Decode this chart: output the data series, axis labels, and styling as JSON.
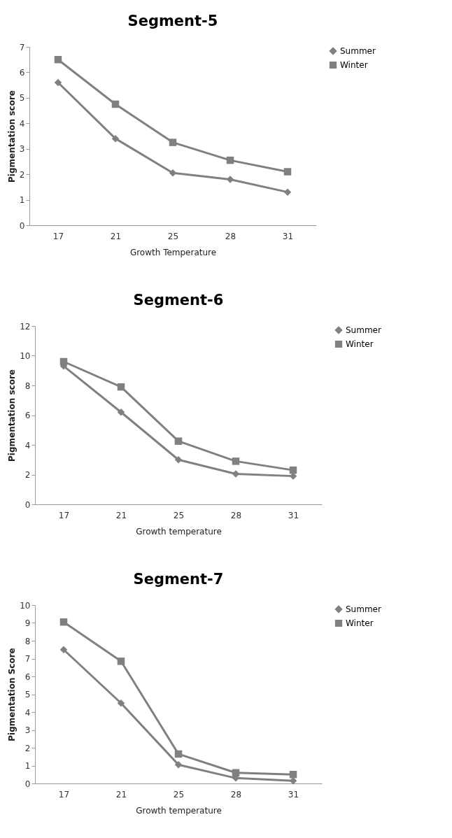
{
  "chart_data": [
    {
      "type": "line",
      "title": "Segment-5",
      "xlabel": "Growth Temperature",
      "ylabel": "Pigmentation score",
      "categories": [
        "17",
        "21",
        "25",
        "28",
        "31"
      ],
      "ylim": [
        0,
        7
      ],
      "yticks": [
        0,
        1,
        2,
        3,
        4,
        5,
        6,
        7
      ],
      "legend": "right",
      "series": [
        {
          "name": "Summer",
          "color": "#808080",
          "marker": "diamond",
          "values": [
            5.6,
            3.4,
            2.05,
            1.8,
            1.3
          ]
        },
        {
          "name": "Winter",
          "color": "#808080",
          "marker": "square",
          "values": [
            6.5,
            4.75,
            3.25,
            2.55,
            2.1
          ]
        }
      ]
    },
    {
      "type": "line",
      "title": "Segment-6",
      "xlabel": "Growth temperature",
      "ylabel": "Pigmentation score",
      "categories": [
        "17",
        "21",
        "25",
        "28",
        "31"
      ],
      "ylim": [
        0,
        12
      ],
      "yticks": [
        0,
        2,
        4,
        6,
        8,
        10,
        12
      ],
      "legend": "right",
      "series": [
        {
          "name": "Summer",
          "color": "#808080",
          "marker": "diamond",
          "values": [
            9.3,
            6.2,
            3.0,
            2.05,
            1.9
          ]
        },
        {
          "name": "Winter",
          "color": "#808080",
          "marker": "square",
          "values": [
            9.6,
            7.9,
            4.25,
            2.9,
            2.3
          ]
        }
      ]
    },
    {
      "type": "line",
      "title": "Segment-7",
      "xlabel": "Growth temperature",
      "ylabel": "Pigmentation Score",
      "categories": [
        "17",
        "21",
        "25",
        "28",
        "31"
      ],
      "ylim": [
        0,
        10
      ],
      "yticks": [
        0,
        1,
        2,
        3,
        4,
        5,
        6,
        7,
        8,
        9,
        10
      ],
      "legend": "right",
      "series": [
        {
          "name": "Summer",
          "color": "#808080",
          "marker": "diamond",
          "values": [
            7.5,
            4.5,
            1.05,
            0.3,
            0.15
          ]
        },
        {
          "name": "Winter",
          "color": "#808080",
          "marker": "square",
          "values": [
            9.05,
            6.85,
            1.65,
            0.6,
            0.5
          ]
        }
      ]
    }
  ]
}
